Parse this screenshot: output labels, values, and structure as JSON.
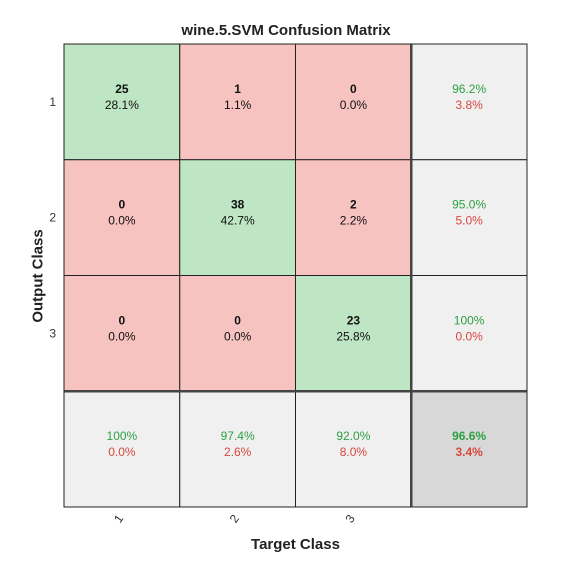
{
  "chart_data": {
    "type": "heatmap",
    "title": "wine.5.SVM Confusion Matrix",
    "xlabel": "Target Class",
    "ylabel": "Output Class",
    "x_tick_labels": [
      "1",
      "2",
      "3"
    ],
    "y_tick_labels": [
      "1",
      "2",
      "3"
    ],
    "matrix": [
      [
        {
          "count": "25",
          "percent": "28.1%"
        },
        {
          "count": "1",
          "percent": "1.1%"
        },
        {
          "count": "0",
          "percent": "0.0%"
        }
      ],
      [
        {
          "count": "0",
          "percent": "0.0%"
        },
        {
          "count": "38",
          "percent": "42.7%"
        },
        {
          "count": "2",
          "percent": "2.2%"
        }
      ],
      [
        {
          "count": "0",
          "percent": "0.0%"
        },
        {
          "count": "0",
          "percent": "0.0%"
        },
        {
          "count": "23",
          "percent": "25.8%"
        }
      ]
    ],
    "row_summary": [
      {
        "correct": "96.2%",
        "error": "3.8%"
      },
      {
        "correct": "95.0%",
        "error": "5.0%"
      },
      {
        "correct": "100%",
        "error": "0.0%"
      }
    ],
    "column_summary": [
      {
        "correct": "100%",
        "error": "0.0%"
      },
      {
        "correct": "97.4%",
        "error": "2.6%"
      },
      {
        "correct": "92.0%",
        "error": "8.0%"
      }
    ],
    "overall": {
      "correct": "96.6%",
      "error": "3.4%"
    },
    "colors": {
      "diagonal": "#bfe6c4",
      "off_diagonal": "#f6c3c0",
      "summary": "#f0f0f0",
      "overall": "#d8d8d8",
      "correct_text": "#2ea043",
      "error_text": "#d9473f",
      "grid": "#222222"
    }
  }
}
